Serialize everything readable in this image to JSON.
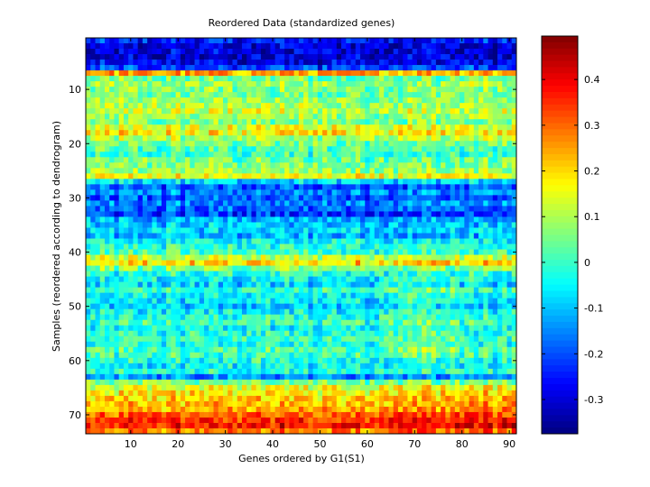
{
  "chart_data": [
    {
      "type": "heatmap",
      "title": "Reordered Data (standardized genes)",
      "xlabel": "Genes ordered by G1(S1)",
      "ylabel": "Samples (reordered according to dendrogram)",
      "xlim": [
        0.5,
        91.5
      ],
      "ylim": [
        0.5,
        73.5
      ],
      "n_cols": 91,
      "n_rows": 73,
      "x_ticks": [
        10,
        20,
        30,
        40,
        50,
        60,
        70,
        80,
        90
      ],
      "y_ticks": [
        10,
        20,
        30,
        40,
        50,
        60,
        70
      ],
      "y_direction": "reverse",
      "colormap": "jet",
      "row_levels": [
        -0.25,
        -0.3,
        -0.3,
        -0.3,
        -0.28,
        -0.22,
        0.25,
        0.05,
        0.08,
        0.06,
        0.05,
        0.08,
        0.1,
        0.12,
        0.08,
        0.06,
        0.14,
        0.18,
        0.1,
        0.05,
        0.02,
        0.0,
        0.04,
        0.06,
        0.08,
        0.15,
        -0.08,
        -0.2,
        -0.15,
        -0.2,
        -0.15,
        -0.18,
        -0.22,
        -0.12,
        -0.1,
        -0.08,
        -0.12,
        -0.05,
        -0.02,
        0.0,
        0.12,
        0.2,
        0.06,
        -0.02,
        -0.05,
        -0.08,
        0.0,
        -0.05,
        -0.06,
        -0.1,
        -0.05,
        -0.02,
        0.0,
        -0.04,
        -0.02,
        0.0,
        -0.03,
        0.02,
        0.0,
        -0.02,
        -0.05,
        -0.02,
        -0.15,
        0.05,
        0.15,
        0.18,
        0.2,
        0.22,
        0.24,
        0.3,
        0.35,
        0.38,
        0.28
      ]
    },
    {
      "type": "colorbar",
      "clim": [
        -0.375,
        0.495
      ],
      "ticks": [
        -0.3,
        -0.2,
        -0.1,
        0,
        0.1,
        0.2,
        0.3,
        0.4
      ],
      "tick_labels": [
        "-0.3",
        "-0.2",
        "-0.1",
        "0",
        "0.1",
        "0.2",
        "0.3",
        "0.4"
      ]
    }
  ]
}
